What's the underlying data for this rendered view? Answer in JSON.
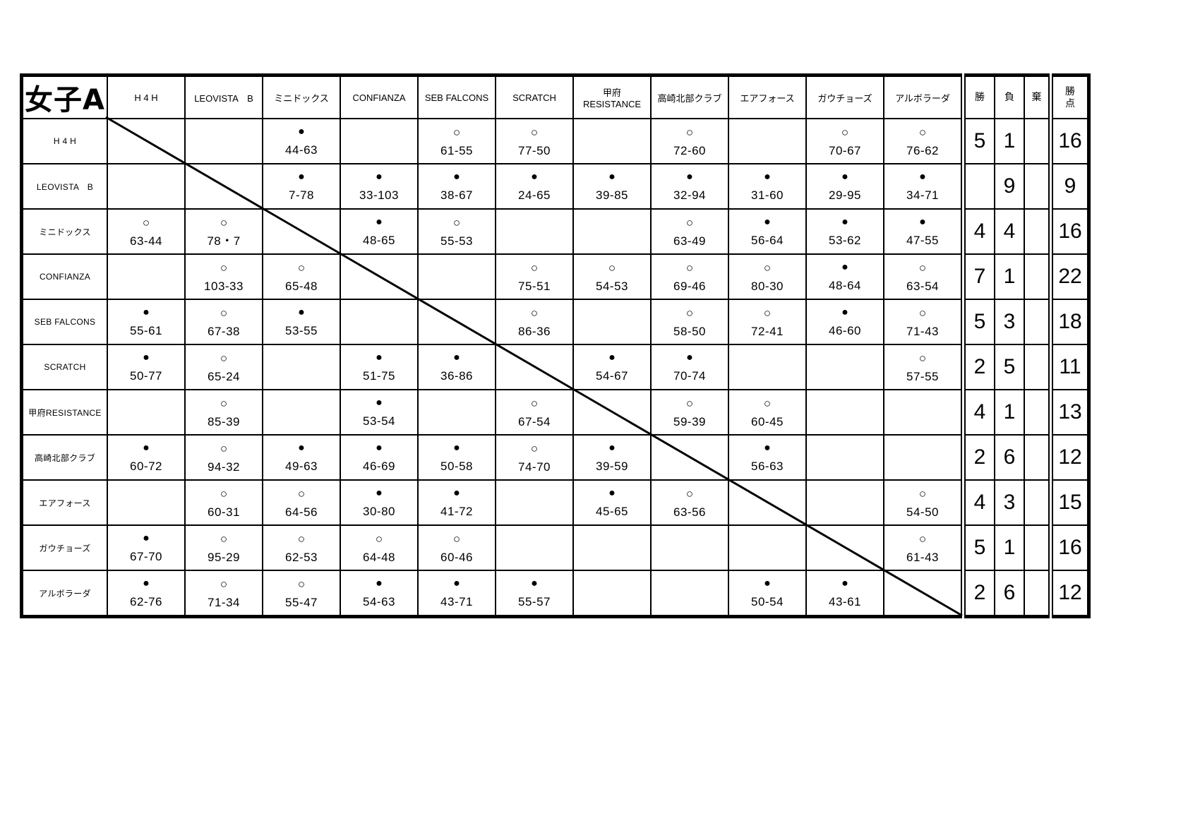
{
  "title": "女子A",
  "teams": [
    "H 4 H",
    "LEOVISTA　B",
    "ミニドックス",
    "CONFIANZA",
    "SEB FALCONS",
    "SCRATCH",
    "甲府RESISTANCE",
    "高崎北部クラブ",
    "エアフォース",
    "ガウチョーズ",
    "アルボラーダ"
  ],
  "summary_headers": {
    "wins": "勝",
    "losses": "負",
    "forfeits": "棄",
    "points": "勝点"
  },
  "marks": {
    "win": "○",
    "loss": "●"
  },
  "results": [
    [
      null,
      null,
      {
        "mark": "●",
        "score": "44-63"
      },
      null,
      {
        "mark": "○",
        "score": "61-55"
      },
      {
        "mark": "○",
        "score": "77-50"
      },
      null,
      {
        "mark": "○",
        "score": "72-60"
      },
      null,
      {
        "mark": "○",
        "score": "70-67"
      },
      {
        "mark": "○",
        "score": "76-62"
      }
    ],
    [
      null,
      null,
      {
        "mark": "●",
        "score": "7-78"
      },
      {
        "mark": "●",
        "score": "33-103"
      },
      {
        "mark": "●",
        "score": "38-67"
      },
      {
        "mark": "●",
        "score": "24-65"
      },
      {
        "mark": "●",
        "score": "39-85"
      },
      {
        "mark": "●",
        "score": "32-94"
      },
      {
        "mark": "●",
        "score": "31-60"
      },
      {
        "mark": "●",
        "score": "29-95"
      },
      {
        "mark": "●",
        "score": "34-71"
      }
    ],
    [
      {
        "mark": "○",
        "score": "63-44"
      },
      {
        "mark": "○",
        "score": "78・7"
      },
      null,
      {
        "mark": "●",
        "score": "48-65"
      },
      {
        "mark": "○",
        "score": "55-53"
      },
      null,
      null,
      {
        "mark": "○",
        "score": "63-49"
      },
      {
        "mark": "●",
        "score": "56-64"
      },
      {
        "mark": "●",
        "score": "53-62"
      },
      {
        "mark": "●",
        "score": "47-55"
      }
    ],
    [
      null,
      {
        "mark": "○",
        "score": "103-33"
      },
      {
        "mark": "○",
        "score": "65-48"
      },
      null,
      null,
      {
        "mark": "○",
        "score": "75-51"
      },
      {
        "mark": "○",
        "score": "54-53"
      },
      {
        "mark": "○",
        "score": "69-46"
      },
      {
        "mark": "○",
        "score": "80-30"
      },
      {
        "mark": "●",
        "score": "48-64"
      },
      {
        "mark": "○",
        "score": "63-54"
      }
    ],
    [
      {
        "mark": "●",
        "score": "55-61"
      },
      {
        "mark": "○",
        "score": "67-38"
      },
      {
        "mark": "●",
        "score": "53-55"
      },
      null,
      null,
      {
        "mark": "○",
        "score": "86-36"
      },
      null,
      {
        "mark": "○",
        "score": "58-50"
      },
      {
        "mark": "○",
        "score": "72-41"
      },
      {
        "mark": "●",
        "score": "46-60"
      },
      {
        "mark": "○",
        "score": "71-43"
      }
    ],
    [
      {
        "mark": "●",
        "score": "50-77"
      },
      {
        "mark": "○",
        "score": "65-24"
      },
      null,
      {
        "mark": "●",
        "score": "51-75"
      },
      {
        "mark": "●",
        "score": "36-86"
      },
      null,
      {
        "mark": "●",
        "score": "54-67"
      },
      {
        "mark": "●",
        "score": "70-74"
      },
      null,
      null,
      {
        "mark": "○",
        "score": "57-55"
      }
    ],
    [
      null,
      {
        "mark": "○",
        "score": "85-39"
      },
      null,
      {
        "mark": "●",
        "score": "53-54"
      },
      null,
      {
        "mark": "○",
        "score": "67-54"
      },
      null,
      {
        "mark": "○",
        "score": "59-39"
      },
      {
        "mark": "○",
        "score": "60-45"
      },
      null,
      null
    ],
    [
      {
        "mark": "●",
        "score": "60-72"
      },
      {
        "mark": "○",
        "score": "94-32"
      },
      {
        "mark": "●",
        "score": "49-63"
      },
      {
        "mark": "●",
        "score": "46-69"
      },
      {
        "mark": "●",
        "score": "50-58"
      },
      {
        "mark": "○",
        "score": "74-70"
      },
      {
        "mark": "●",
        "score": "39-59"
      },
      null,
      {
        "mark": "●",
        "score": "56-63"
      },
      null,
      null
    ],
    [
      null,
      {
        "mark": "○",
        "score": "60-31"
      },
      {
        "mark": "○",
        "score": "64-56"
      },
      {
        "mark": "●",
        "score": "30-80"
      },
      {
        "mark": "●",
        "score": "41-72"
      },
      null,
      {
        "mark": "●",
        "score": "45-65"
      },
      {
        "mark": "○",
        "score": "63-56"
      },
      null,
      null,
      {
        "mark": "○",
        "score": "54-50"
      }
    ],
    [
      {
        "mark": "●",
        "score": "67-70"
      },
      {
        "mark": "○",
        "score": "95-29"
      },
      {
        "mark": "○",
        "score": "62-53"
      },
      {
        "mark": "○",
        "score": "64-48"
      },
      {
        "mark": "○",
        "score": "60-46"
      },
      null,
      null,
      null,
      null,
      null,
      {
        "mark": "○",
        "score": "61-43"
      }
    ],
    [
      {
        "mark": "●",
        "score": "62-76"
      },
      {
        "mark": "○",
        "score": "71-34"
      },
      {
        "mark": "○",
        "score": "55-47"
      },
      {
        "mark": "●",
        "score": "54-63"
      },
      {
        "mark": "●",
        "score": "43-71"
      },
      {
        "mark": "●",
        "score": "55-57"
      },
      null,
      null,
      {
        "mark": "●",
        "score": "50-54"
      },
      {
        "mark": "●",
        "score": "43-61"
      },
      null
    ]
  ],
  "summary": [
    {
      "wins": "5",
      "losses": "1",
      "forfeits": "",
      "points": "16"
    },
    {
      "wins": "",
      "losses": "9",
      "forfeits": "",
      "points": "9"
    },
    {
      "wins": "4",
      "losses": "4",
      "forfeits": "",
      "points": "16"
    },
    {
      "wins": "7",
      "losses": "1",
      "forfeits": "",
      "points": "22"
    },
    {
      "wins": "5",
      "losses": "3",
      "forfeits": "",
      "points": "18"
    },
    {
      "wins": "2",
      "losses": "5",
      "forfeits": "",
      "points": "11"
    },
    {
      "wins": "4",
      "losses": "1",
      "forfeits": "",
      "points": "13"
    },
    {
      "wins": "2",
      "losses": "6",
      "forfeits": "",
      "points": "12"
    },
    {
      "wins": "4",
      "losses": "3",
      "forfeits": "",
      "points": "15"
    },
    {
      "wins": "5",
      "losses": "1",
      "forfeits": "",
      "points": "16"
    },
    {
      "wins": "2",
      "losses": "6",
      "forfeits": "",
      "points": "12"
    }
  ]
}
